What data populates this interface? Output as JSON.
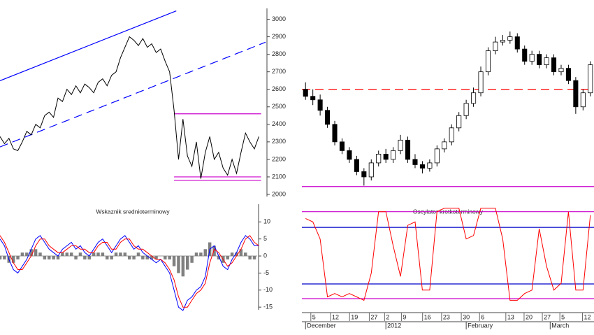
{
  "chart_data": [
    {
      "type": "line",
      "color": "#000000",
      "values": [
        2330,
        2290,
        2320,
        2260,
        2250,
        2300,
        2360,
        2340,
        2400,
        2380,
        2450,
        2470,
        2440,
        2550,
        2530,
        2600,
        2570,
        2620,
        2580,
        2630,
        2610,
        2580,
        2640,
        2660,
        2620,
        2680,
        2700,
        2780,
        2840,
        2900,
        2880,
        2850,
        2890,
        2840,
        2860,
        2810,
        2830,
        2760,
        2700,
        2480,
        2200,
        2430,
        2220,
        2160,
        2300,
        2090,
        2240,
        2330,
        2200,
        2240,
        2150,
        2110,
        2200,
        2120,
        2240,
        2350,
        2300,
        2260,
        2330
      ],
      "xlim": [
        0,
        59.5
      ],
      "ylim": [
        1980,
        3070
      ],
      "yticks": [
        2000,
        2100,
        2200,
        2300,
        2400,
        2500,
        2600,
        2700,
        2800,
        2900,
        3000
      ],
      "lines": [
        {
          "x": [
            0,
            39.5
          ],
          "y": [
            2649,
            3048
          ],
          "color": "#0000ff",
          "dash": false
        },
        {
          "x": [
            0,
            59.5
          ],
          "y": [
            2271,
            2869
          ],
          "color": "#0000ff",
          "dash": true
        },
        {
          "x": [
            39,
            58.5
          ],
          "y": [
            2460,
            2460
          ],
          "color": "#cc00cc",
          "dash": false
        },
        {
          "x": [
            39,
            58.5
          ],
          "y": [
            2100,
            2100
          ],
          "color": "#cc00cc",
          "dash": false
        },
        {
          "x": [
            39,
            58.5
          ],
          "y": [
            2080,
            2080
          ],
          "color": "#cc00cc",
          "dash": false
        }
      ]
    },
    {
      "type": "candlestick",
      "up_color": "#ffffff",
      "down_color": "#000000",
      "open": [
        2600,
        2560,
        2540,
        2480,
        2400,
        2300,
        2250,
        2200,
        2130,
        2100,
        2180,
        2230,
        2200,
        2250,
        2310,
        2200,
        2170,
        2150,
        2180,
        2260,
        2300,
        2380,
        2450,
        2520,
        2580,
        2700,
        2820,
        2870,
        2880,
        2900,
        2830,
        2760,
        2800,
        2740,
        2780,
        2700,
        2720,
        2650,
        2500,
        2580
      ],
      "high": [
        2640,
        2600,
        2570,
        2500,
        2420,
        2320,
        2270,
        2220,
        2150,
        2200,
        2250,
        2260,
        2270,
        2340,
        2330,
        2230,
        2190,
        2200,
        2280,
        2320,
        2400,
        2470,
        2540,
        2610,
        2730,
        2840,
        2900,
        2910,
        2930,
        2920,
        2850,
        2820,
        2820,
        2800,
        2800,
        2740,
        2740,
        2670,
        2600,
        2760
      ],
      "low": [
        2540,
        2510,
        2450,
        2380,
        2280,
        2230,
        2180,
        2110,
        2050,
        2080,
        2160,
        2180,
        2180,
        2230,
        2180,
        2150,
        2120,
        2130,
        2160,
        2240,
        2280,
        2360,
        2430,
        2500,
        2560,
        2680,
        2800,
        2850,
        2860,
        2810,
        2740,
        2740,
        2720,
        2720,
        2680,
        2680,
        2630,
        2460,
        2480,
        2560
      ],
      "close": [
        2560,
        2540,
        2480,
        2400,
        2300,
        2250,
        2200,
        2130,
        2100,
        2180,
        2230,
        2200,
        2250,
        2310,
        2200,
        2170,
        2150,
        2180,
        2260,
        2300,
        2380,
        2450,
        2520,
        2580,
        2700,
        2820,
        2870,
        2880,
        2900,
        2830,
        2760,
        2800,
        2740,
        2780,
        2700,
        2720,
        2650,
        2500,
        2580,
        2740
      ],
      "xlim": [
        -0.5,
        39.5
      ],
      "ylim": [
        1980,
        3070
      ],
      "xticks": [
        {
          "value": 1.3,
          "label": "5"
        },
        {
          "value": 4,
          "label": "12"
        },
        {
          "value": 6.6,
          "label": "19"
        },
        {
          "value": 9.3,
          "label": "27"
        },
        {
          "value": 11.4,
          "label": "2"
        },
        {
          "value": 13.7,
          "label": "9"
        },
        {
          "value": 16.6,
          "label": "16"
        },
        {
          "value": 19.2,
          "label": "23"
        },
        {
          "value": 21.9,
          "label": "30"
        },
        {
          "value": 24.4,
          "label": "6"
        },
        {
          "value": 28,
          "label": "13"
        },
        {
          "value": 30.5,
          "label": "20"
        },
        {
          "value": 33,
          "label": "27"
        },
        {
          "value": 35.4,
          "label": "5"
        },
        {
          "value": 38.5,
          "label": "12"
        }
      ],
      "months": [
        {
          "value": 0,
          "label": "December"
        },
        {
          "value": 11,
          "label": "2012"
        },
        {
          "value": 22,
          "label": "February"
        },
        {
          "value": 33.5,
          "label": "March"
        }
      ],
      "lines": [
        {
          "x": [
            -0.5,
            39.5
          ],
          "y": [
            2600,
            2600
          ],
          "color": "#ff0000",
          "dash": true
        },
        {
          "x": [
            -0.5,
            39.5
          ],
          "y": [
            2045,
            2045
          ],
          "color": "#cc00cc",
          "dash": false
        }
      ]
    },
    {
      "type": "macd",
      "title": "Wskaznik srednioterminowy",
      "series": [
        {
          "color": "#0000ff",
          "values": [
            5,
            3,
            -1,
            -4,
            -5,
            -3,
            -1,
            2,
            5,
            6,
            4,
            2,
            1,
            0,
            2,
            3,
            4,
            2,
            3,
            1,
            0,
            2,
            4,
            5,
            3,
            1,
            3,
            5,
            6,
            4,
            2,
            3,
            1,
            0,
            -1,
            -2,
            -1,
            -3,
            -5,
            -10,
            -15,
            -16,
            -13,
            -12,
            -10,
            -9,
            -6,
            2,
            3,
            0,
            -3,
            -4,
            -1,
            1,
            4,
            6,
            5,
            3,
            3
          ]
        },
        {
          "color": "#ff0000",
          "values": [
            6,
            4,
            1,
            -2,
            -4,
            -4,
            -2,
            0,
            3,
            5,
            5,
            3,
            2,
            1,
            1,
            2,
            3,
            3,
            2,
            2,
            1,
            1,
            3,
            4,
            4,
            2,
            2,
            4,
            5,
            5,
            3,
            2,
            2,
            1,
            0,
            -1,
            -1,
            -2,
            -4,
            -7,
            -12,
            -15,
            -15,
            -13,
            -11,
            -10,
            -8,
            -2,
            2,
            1,
            -1,
            -3,
            -2,
            0,
            2,
            5,
            6,
            4,
            3
          ]
        }
      ],
      "histogram": {
        "color": "#808080",
        "values": [
          -1,
          -1,
          -2,
          -2,
          -1,
          1,
          1,
          2,
          2,
          1,
          -1,
          -1,
          -1,
          -1,
          1,
          1,
          1,
          -1,
          1,
          -1,
          -1,
          1,
          1,
          1,
          -1,
          -1,
          1,
          1,
          1,
          -1,
          -1,
          1,
          -1,
          -1,
          -1,
          -1,
          0,
          -1,
          -1,
          -3,
          -5,
          -6,
          -4,
          -2,
          1,
          1,
          2,
          4,
          3,
          -1,
          -2,
          -1,
          1,
          1,
          2,
          1,
          -1,
          -1,
          0
        ]
      },
      "xlim": [
        0,
        59.5
      ],
      "ylim": [
        -16.2,
        15.6
      ],
      "yticks": [
        10,
        5,
        0,
        -5,
        -10,
        -15
      ]
    },
    {
      "type": "oscillator",
      "title": "Oscylator krotkoterminowy",
      "color": "#ff0000",
      "values": [
        11,
        10,
        5,
        -12,
        -11,
        -12,
        -11,
        -12,
        -13,
        -5,
        13,
        13,
        3,
        -6,
        9,
        10,
        -10,
        -10,
        13,
        14,
        14,
        14,
        5,
        6,
        14,
        14,
        14,
        5,
        -13,
        -13,
        -11,
        -10,
        8,
        -3,
        -10,
        -8,
        13,
        -10,
        -10,
        12
      ],
      "xlim": [
        -0.5,
        39.5
      ],
      "ylim": [
        -16.2,
        15.6
      ],
      "lines": [
        {
          "x": [
            -0.5,
            39.5
          ],
          "y": [
            13,
            13
          ],
          "color": "#cc00cc",
          "dash": false
        },
        {
          "x": [
            -0.5,
            39.5
          ],
          "y": [
            -12.5,
            -12.5
          ],
          "color": "#cc00cc",
          "dash": false
        },
        {
          "x": [
            -0.5,
            39.5
          ],
          "y": [
            8.4,
            8.4
          ],
          "color": "#0000cc",
          "dash": false
        },
        {
          "x": [
            -0.5,
            39.5
          ],
          "y": [
            -8.2,
            -8.2
          ],
          "color": "#0000cc",
          "dash": false
        }
      ]
    }
  ]
}
